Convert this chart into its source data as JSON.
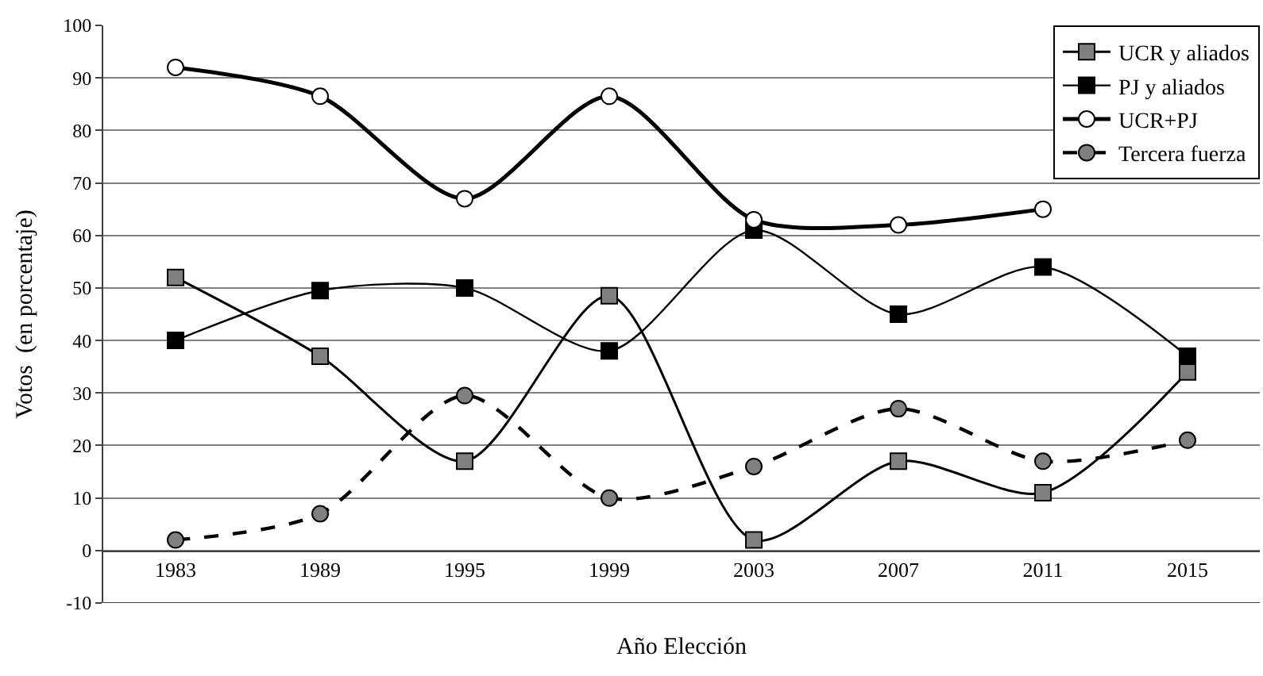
{
  "chart_data": {
    "type": "line",
    "xlabel": "Año Elección",
    "ylabel": "Votos  (en porcentaje)",
    "categories": [
      "1983",
      "1989",
      "1995",
      "1999",
      "2003",
      "2007",
      "2011",
      "2015"
    ],
    "series": [
      {
        "name": "UCR y aliados",
        "color": "#000000",
        "colors": [
          "#808080",
          "#808080",
          "#808080",
          "#808080",
          "#808080",
          "#808080",
          "#808080",
          "#808080"
        ],
        "marker": "square",
        "line_style": "solid",
        "values": [
          52,
          37,
          17,
          48.5,
          2,
          17,
          11,
          34
        ]
      },
      {
        "name": "PJ y aliados",
        "color": "#000000",
        "colors": [
          "#000000",
          "#000000",
          "#000000",
          "#000000",
          "#000000",
          "#000000",
          "#000000",
          "#000000"
        ],
        "marker": "square",
        "line_style": "solid",
        "values": [
          40,
          49.5,
          50,
          38,
          61,
          45,
          54,
          37
        ]
      },
      {
        "name": "UCR+PJ",
        "color": "#000000",
        "colors": [
          "#ffffff",
          "#ffffff",
          "#ffffff",
          "#ffffff",
          "#ffffff",
          "#ffffff",
          "#ffffff",
          "#ffffff"
        ],
        "marker": "circle",
        "line_style": "solid",
        "values": [
          92,
          86.5,
          67,
          86.5,
          63,
          62,
          65,
          null
        ]
      },
      {
        "name": "Tercera fuerza",
        "color": "#000000",
        "colors": [
          "#808080",
          "#808080",
          "#808080",
          "#808080",
          "#808080",
          "#808080",
          "#808080",
          "#808080"
        ],
        "marker": "circle",
        "line_style": "dashed",
        "values": [
          2,
          7,
          29.5,
          10,
          16,
          27,
          17,
          21
        ]
      }
    ],
    "ylim": [
      -10,
      100
    ],
    "yticks": [
      -10,
      0,
      10,
      20,
      30,
      40,
      50,
      60,
      70,
      80,
      90,
      100
    ],
    "grid": "y",
    "legend": "top right"
  }
}
